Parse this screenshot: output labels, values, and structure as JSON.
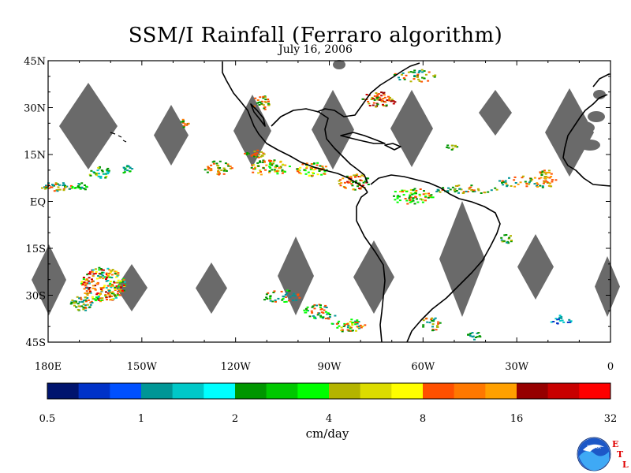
{
  "title": "SSM/I Rainfall (Ferraro algorithm)",
  "subtitle": "July 16, 2006",
  "map": {
    "lat_labels": [
      "45N",
      "30N",
      "15N",
      "EQ",
      "15S",
      "30S",
      "45S"
    ],
    "lat_values": [
      45,
      30,
      15,
      0,
      -15,
      -30,
      -45
    ],
    "lon_labels": [
      "180E",
      "150W",
      "120W",
      "90W",
      "60W",
      "30W",
      "0"
    ],
    "lon_values": [
      -180,
      -150,
      -120,
      -90,
      -60,
      -30,
      0
    ],
    "lon_range": [
      -180,
      0
    ],
    "lat_range": [
      -45,
      45
    ],
    "land_color": "#000000",
    "missing_color": "#6a6a6a"
  },
  "colorbar": {
    "colors": [
      "#00146e",
      "#0032c8",
      "#0050ff",
      "#009696",
      "#00c8c8",
      "#00ffff",
      "#009600",
      "#00c800",
      "#00ff00",
      "#b4b400",
      "#dcdc00",
      "#ffff00",
      "#ff5000",
      "#ff7800",
      "#ffa000",
      "#960000",
      "#c80000",
      "#ff0000"
    ],
    "labels": [
      "0.5",
      "1",
      "2",
      "4",
      "8",
      "16",
      "32"
    ],
    "units": "cm/day"
  },
  "logo": {
    "text": "NOAA",
    "letters": [
      "E",
      "T",
      "L"
    ],
    "letter_color": "#e00000"
  }
}
